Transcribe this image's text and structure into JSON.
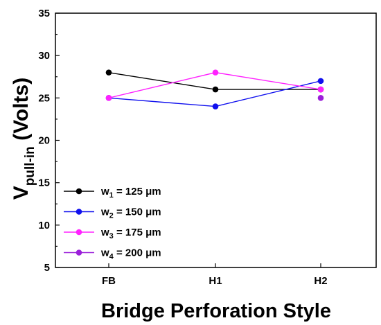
{
  "chart_data": {
    "type": "line",
    "categories": [
      "FB",
      "H1",
      "H2"
    ],
    "series": [
      {
        "name": "w1 = 125 μm",
        "label_main": "w",
        "label_sub": "1",
        "label_rest": " = 125 μm",
        "color": "#000000",
        "values": [
          28,
          26,
          26
        ]
      },
      {
        "name": "w2 = 150 μm",
        "label_main": "w",
        "label_sub": "2",
        "label_rest": " = 150 μm",
        "color": "#1010ee",
        "values": [
          25,
          24,
          27
        ]
      },
      {
        "name": "w3 = 175 μm",
        "label_main": "w",
        "label_sub": "3",
        "label_rest": " = 175 μm",
        "color": "#ff22ff",
        "values": [
          25,
          28,
          26
        ]
      },
      {
        "name": "w4 = 200 μm",
        "label_main": "w",
        "label_sub": "4",
        "label_rest": " = 200 μm",
        "color": "#9b1fd9",
        "values": [
          null,
          null,
          25
        ]
      }
    ],
    "xlabel": "Bridge Perforation Style",
    "ylabel_main": "V",
    "ylabel_sub": "pull-in",
    "ylabel_rest": " (Volts)",
    "ylim": [
      5,
      35
    ],
    "yticks": [
      "5",
      "10",
      "15",
      "20",
      "25",
      "30",
      "35"
    ],
    "grid": false,
    "legend_position": "bottom-left"
  }
}
